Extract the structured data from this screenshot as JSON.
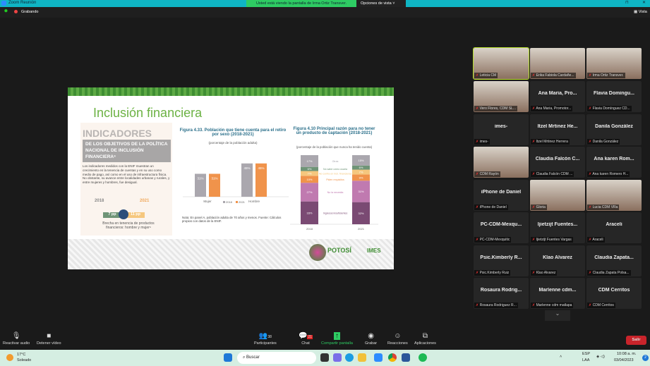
{
  "window": {
    "title": "Zoom Reunión",
    "banner": "Usted está viendo la pantalla de Irma Ortiz Transver.",
    "view_options": "Opciones de vista",
    "recording": "Grabando",
    "view": "Vista"
  },
  "slide": {
    "title": "Inclusión financiera",
    "indicators_heading": "INDICADORES",
    "indicators_sub": "DE LOS OBJETIVOS DE LA POLÍTICA NACIONAL DE INCLUSIÓN FINANCIERA⁶",
    "indicators_text": "Los indicadores medidos con la ENIF muestran un crecimiento en la tenencia de cuentas y en su uso como medio de pago, así como en el uso de infraestructura física. No obstante, su avance entre localidades urbanas y rurales, y entre mujeres y hombres, fue desigual.",
    "year_left": "2018",
    "year_right": "2021",
    "gap_left": "7 pp",
    "gap_right": "11 pp",
    "gap_caption": "Brecha en tenencia de productos financieros: hombre y mujer⁶",
    "note": "Nota: En panel A, población adulta de 70 años y menos. Fuente: Cálculos propios con datos de la ENIF.",
    "logo_left": "POTOSÍ",
    "logo_right": "IMES"
  },
  "chart_data": [
    {
      "type": "bar",
      "title": "Figura 4.33. Población que tiene cuenta para el retiro por sexo (2018-2021)",
      "subtitle": "(porcentaje de la población adulta)",
      "categories": [
        "Mujer",
        "Hombre"
      ],
      "series": [
        {
          "name": "2018",
          "values": [
            31,
            45
          ],
          "color": "#aaa7ae"
        },
        {
          "name": "2021",
          "values": [
            31,
            45
          ],
          "color": "#f0934b"
        }
      ],
      "legend": "bottom"
    },
    {
      "type": "bar",
      "stacked": true,
      "title": "Figura 4.10 Principal razón para no tener un producto de captación (2018-2021)",
      "subtitle": "(porcentaje de la población que nunca ha tenido cuenta)",
      "categories": [
        "2018",
        "2021"
      ],
      "series": [
        {
          "name": "Ingresos insuficientes",
          "values": [
            33,
            32
          ],
          "color": "#7a4a73"
        },
        {
          "name": "No la necesita",
          "values": [
            27,
            31
          ],
          "color": "#c07ab0"
        },
        {
          "name": "Piden requisitos",
          "values": [
            10,
            9
          ],
          "color": "#f0934b"
        },
        {
          "name": "No confía en inst. financieras",
          "values": [
            7,
            7
          ],
          "color": "#f5c77e"
        },
        {
          "name": "No sabe cómo usarla",
          "values": [
            6,
            6
          ],
          "color": "#6f9477"
        },
        {
          "name": "Otras",
          "values": [
            17,
            15
          ],
          "color": "#aaa7ae"
        }
      ]
    }
  ],
  "participants": [
    {
      "name": "Leticia CM",
      "video": true,
      "active": true
    },
    {
      "name": "Erika Fabiola Cardañe...",
      "video": true
    },
    {
      "name": "Irma Ortiz Transver.",
      "video": true
    },
    {
      "name": "Vero Flores, CDM SL...",
      "video": true
    },
    {
      "title": "Ana Maria, Pro...",
      "name": "Ana Maria, Promotor..."
    },
    {
      "title": "Flavia Domingu...",
      "name": "Flavia Domínguez CD..."
    },
    {
      "title": "imes-",
      "name": "imes-"
    },
    {
      "title": "Itzel Mrtinez He...",
      "name": "Itzel Mrtinez Herrera"
    },
    {
      "title": "Danila González",
      "name": "Danila González"
    },
    {
      "name": "CDM Rayón",
      "video": true
    },
    {
      "title": "Claudia Falcón C...",
      "name": "Claudia Falcón CDM ..."
    },
    {
      "title": "Ana karen Rom...",
      "name": "Ana karen Romero H..."
    },
    {
      "title": "iPhone de Daniel",
      "name": "iPhone de Daniel"
    },
    {
      "name": "Gloria",
      "video": true
    },
    {
      "name": "Lucia CDM VRa",
      "video": true
    },
    {
      "title": "PC-CDM-Mexqu...",
      "name": "PC-CDM-Mexquitic"
    },
    {
      "title": "Ijietzijt Fuentes...",
      "name": "Ijietzijt Fuentes Vargas"
    },
    {
      "title": "Araceli",
      "name": "Araceli"
    },
    {
      "title": "Psic.Kimberly R...",
      "name": "Psic.Kimberly Ruiz"
    },
    {
      "title": "Klao Alvarez",
      "name": "Klao Alvarez"
    },
    {
      "title": "Claudia Zapata...",
      "name": "Claudia Zapata Polsa..."
    },
    {
      "title": "Rosaura Rodrig...",
      "name": "Rosaura Rodriguez R..."
    },
    {
      "title": "Marlenne cdm...",
      "name": "Marlenne cdm matlapa"
    },
    {
      "title": "CDM Cerritos",
      "name": "CDM Cerritos"
    }
  ],
  "toolbar": {
    "audio": "Reactivar audio",
    "video": "Detener vídeo",
    "participants": "Participantes",
    "participants_count": "38",
    "chat": "Chat",
    "chat_badge": "21",
    "share": "Compartir pantalla",
    "record": "Grabar",
    "reactions": "Reacciones",
    "apps": "Aplicaciones",
    "leave": "Salir"
  },
  "taskbar": {
    "temp": "17°C",
    "weather": "Soleado",
    "search": "Buscar",
    "lang1": "ESP",
    "lang2": "LAA",
    "time": "10:08 a. m.",
    "date": "03/04/2023",
    "notif": "2"
  }
}
